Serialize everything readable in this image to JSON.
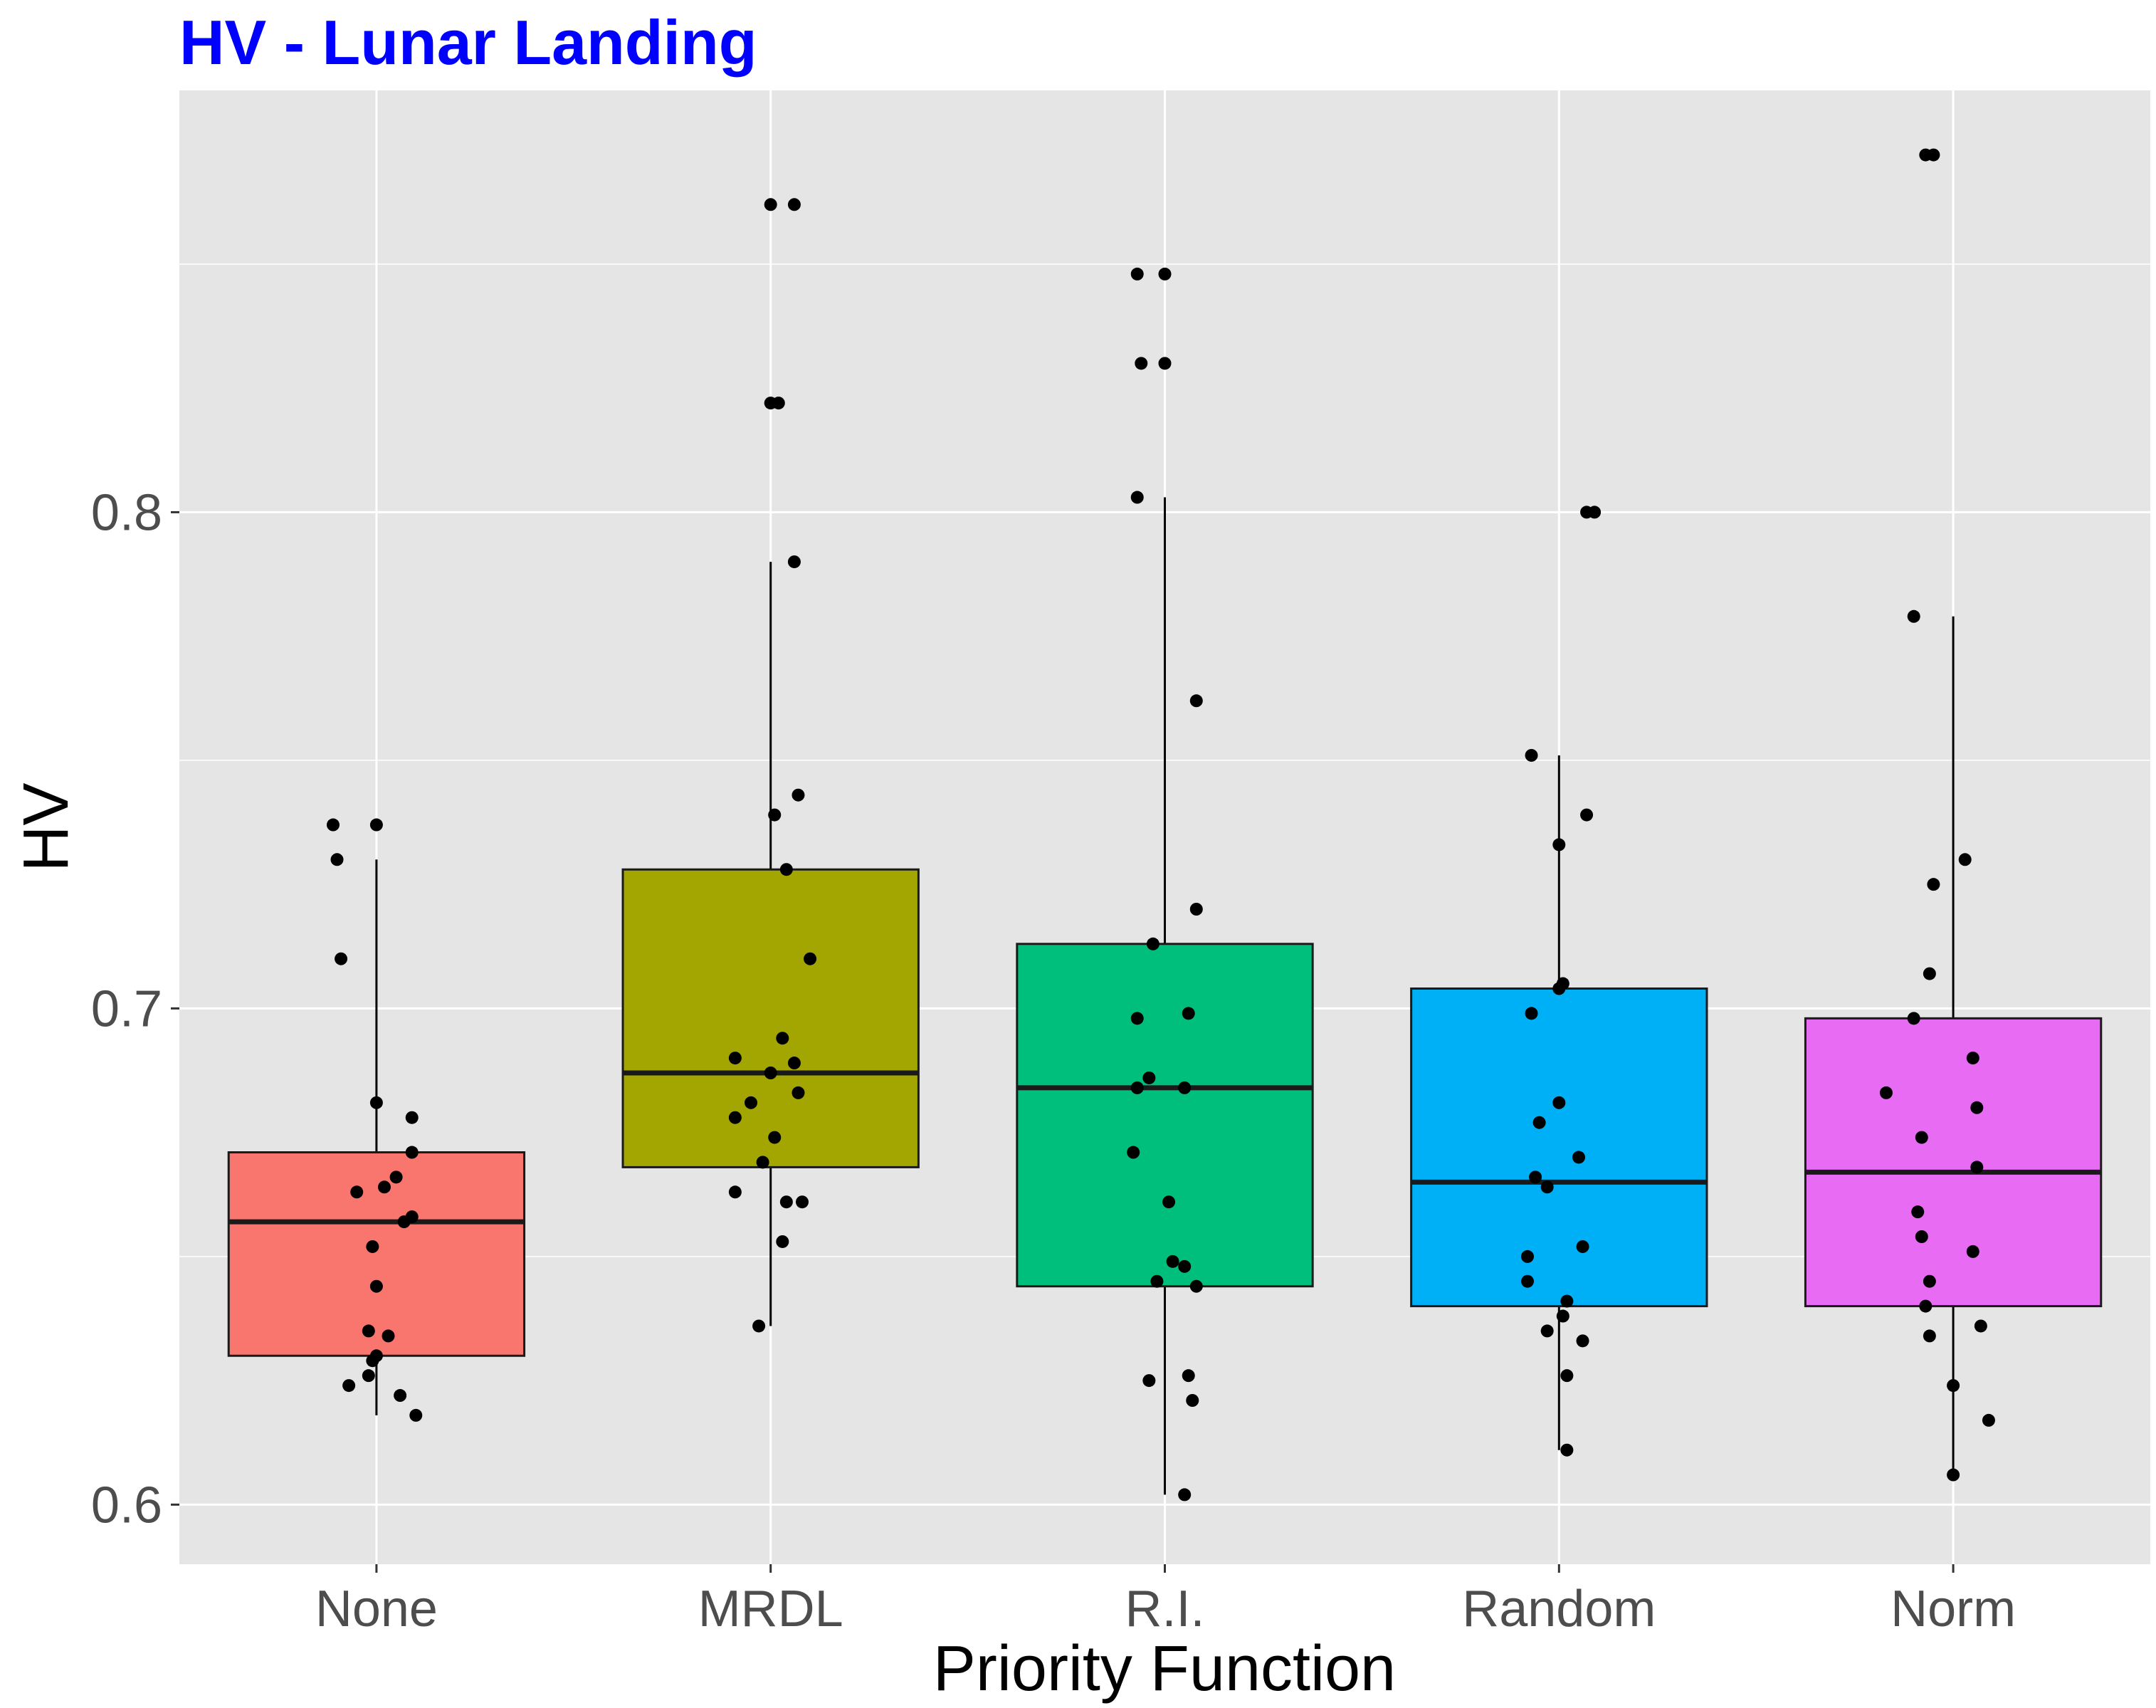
{
  "chart_data": {
    "type": "box",
    "title": "HV - Lunar Landing",
    "title_color": "#0000ff",
    "xlabel": "Priority Function",
    "ylabel": "HV",
    "ylim": [
      0.588,
      0.885
    ],
    "y_ticks": [
      0.6,
      0.7,
      0.8
    ],
    "y_tick_labels": [
      "0.6",
      "0.7",
      "0.8"
    ],
    "y_minor_ticks": [
      0.65,
      0.75,
      0.85
    ],
    "grid": true,
    "legend": "none",
    "categories": [
      "None",
      "MRDL",
      "R.I.",
      "Random",
      "Norm"
    ],
    "boxes": [
      {
        "category": "None",
        "color": "#f8766d",
        "whisker_low": 0.618,
        "q1": 0.63,
        "median": 0.657,
        "q3": 0.671,
        "whisker_high": 0.73,
        "points": [
          [
            -0.11,
            0.737
          ],
          [
            0.0,
            0.737
          ],
          [
            -0.1,
            0.73
          ],
          [
            -0.09,
            0.71
          ],
          [
            0.0,
            0.681
          ],
          [
            0.09,
            0.678
          ],
          [
            0.09,
            0.671
          ],
          [
            0.05,
            0.666
          ],
          [
            0.02,
            0.664
          ],
          [
            -0.05,
            0.663
          ],
          [
            0.09,
            0.658
          ],
          [
            0.07,
            0.657
          ],
          [
            -0.01,
            0.652
          ],
          [
            0.0,
            0.644
          ],
          [
            -0.02,
            0.635
          ],
          [
            0.03,
            0.634
          ],
          [
            0.0,
            0.63
          ],
          [
            -0.01,
            0.629
          ],
          [
            -0.02,
            0.626
          ],
          [
            -0.07,
            0.624
          ],
          [
            0.06,
            0.622
          ],
          [
            0.1,
            0.618
          ]
        ]
      },
      {
        "category": "MRDL",
        "color": "#a3a500",
        "whisker_low": 0.636,
        "q1": 0.668,
        "median": 0.687,
        "q3": 0.728,
        "whisker_high": 0.79,
        "points": [
          [
            0.0,
            0.862
          ],
          [
            0.06,
            0.862
          ],
          [
            0.0,
            0.822
          ],
          [
            0.02,
            0.822
          ],
          [
            0.06,
            0.79
          ],
          [
            0.07,
            0.743
          ],
          [
            0.01,
            0.739
          ],
          [
            0.04,
            0.728
          ],
          [
            0.1,
            0.71
          ],
          [
            0.03,
            0.694
          ],
          [
            -0.09,
            0.69
          ],
          [
            0.06,
            0.689
          ],
          [
            0.0,
            0.687
          ],
          [
            0.07,
            0.683
          ],
          [
            -0.05,
            0.681
          ],
          [
            -0.09,
            0.678
          ],
          [
            0.01,
            0.674
          ],
          [
            -0.02,
            0.669
          ],
          [
            -0.09,
            0.663
          ],
          [
            0.04,
            0.661
          ],
          [
            0.08,
            0.661
          ],
          [
            0.03,
            0.653
          ],
          [
            -0.03,
            0.636
          ]
        ]
      },
      {
        "category": "R.I.",
        "color": "#00bf7d",
        "whisker_low": 0.602,
        "q1": 0.644,
        "median": 0.684,
        "q3": 0.713,
        "whisker_high": 0.803,
        "points": [
          [
            -0.07,
            0.848
          ],
          [
            0.0,
            0.848
          ],
          [
            -0.06,
            0.83
          ],
          [
            0.0,
            0.83
          ],
          [
            -0.07,
            0.803
          ],
          [
            0.08,
            0.762
          ],
          [
            0.08,
            0.72
          ],
          [
            -0.03,
            0.713
          ],
          [
            -0.07,
            0.698
          ],
          [
            0.06,
            0.699
          ],
          [
            -0.04,
            0.686
          ],
          [
            -0.07,
            0.684
          ],
          [
            0.05,
            0.684
          ],
          [
            -0.08,
            0.671
          ],
          [
            0.01,
            0.661
          ],
          [
            0.02,
            0.649
          ],
          [
            0.05,
            0.648
          ],
          [
            -0.02,
            0.645
          ],
          [
            0.08,
            0.644
          ],
          [
            -0.04,
            0.625
          ],
          [
            0.06,
            0.626
          ],
          [
            0.07,
            0.621
          ],
          [
            0.05,
            0.602
          ]
        ]
      },
      {
        "category": "Random",
        "color": "#00b0f6",
        "whisker_low": 0.611,
        "q1": 0.64,
        "median": 0.665,
        "q3": 0.704,
        "whisker_high": 0.751,
        "points": [
          [
            0.07,
            0.8
          ],
          [
            0.09,
            0.8
          ],
          [
            -0.07,
            0.751
          ],
          [
            0.07,
            0.739
          ],
          [
            0.0,
            0.733
          ],
          [
            0.01,
            0.705
          ],
          [
            0.0,
            0.704
          ],
          [
            -0.07,
            0.699
          ],
          [
            0.0,
            0.681
          ],
          [
            -0.05,
            0.677
          ],
          [
            0.05,
            0.67
          ],
          [
            -0.06,
            0.666
          ],
          [
            -0.03,
            0.664
          ],
          [
            0.06,
            0.652
          ],
          [
            -0.08,
            0.65
          ],
          [
            -0.08,
            0.645
          ],
          [
            0.02,
            0.641
          ],
          [
            0.01,
            0.638
          ],
          [
            -0.03,
            0.635
          ],
          [
            0.06,
            0.633
          ],
          [
            0.02,
            0.626
          ],
          [
            0.02,
            0.611
          ]
        ]
      },
      {
        "category": "Norm",
        "color": "#e76bf3",
        "whisker_low": 0.606,
        "q1": 0.64,
        "median": 0.667,
        "q3": 0.698,
        "whisker_high": 0.779,
        "points": [
          [
            -0.07,
            0.872
          ],
          [
            -0.05,
            0.872
          ],
          [
            -0.1,
            0.779
          ],
          [
            0.03,
            0.73
          ],
          [
            -0.05,
            0.725
          ],
          [
            -0.06,
            0.707
          ],
          [
            -0.1,
            0.698
          ],
          [
            0.05,
            0.69
          ],
          [
            -0.17,
            0.683
          ],
          [
            0.06,
            0.68
          ],
          [
            -0.08,
            0.674
          ],
          [
            0.06,
            0.668
          ],
          [
            -0.09,
            0.659
          ],
          [
            -0.08,
            0.654
          ],
          [
            0.05,
            0.651
          ],
          [
            -0.06,
            0.645
          ],
          [
            -0.07,
            0.64
          ],
          [
            0.07,
            0.636
          ],
          [
            -0.06,
            0.634
          ],
          [
            0.0,
            0.624
          ],
          [
            0.09,
            0.617
          ],
          [
            0.0,
            0.606
          ]
        ]
      }
    ]
  }
}
